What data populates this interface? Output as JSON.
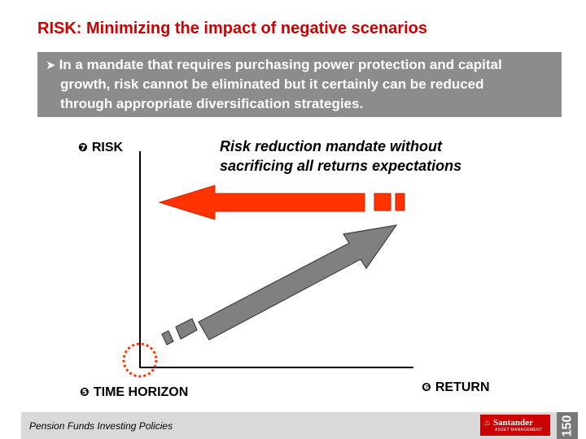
{
  "title": "RISK: Minimizing the impact of negative scenarios",
  "banner": {
    "bullet_icon": "arrow-bullet-icon",
    "line1": "In a mandate that requires purchasing power protection and capital",
    "line2": "growth, risk cannot be eliminated but it certainly can be reduced",
    "line3": "through appropriate diversification strategies."
  },
  "axes": {
    "risk": {
      "number": "❼",
      "label": "RISK"
    },
    "time": {
      "number": "❺",
      "label": "TIME HORIZON"
    },
    "return": {
      "number": "❻",
      "label": "RETURN"
    }
  },
  "mandate_text": {
    "line1": "Risk reduction mandate without",
    "line2": "sacrificing all returns expectations"
  },
  "colors": {
    "title": "#cc0000",
    "banner": "#8c8c8c",
    "red_arrow": "#ff3300",
    "grey_arrow": "#808080"
  },
  "footer": {
    "text": "Pension Funds Investing Policies",
    "logo_name": "Santander",
    "logo_sub": "ASSET MANAGEMENT",
    "anniversary": "150"
  }
}
